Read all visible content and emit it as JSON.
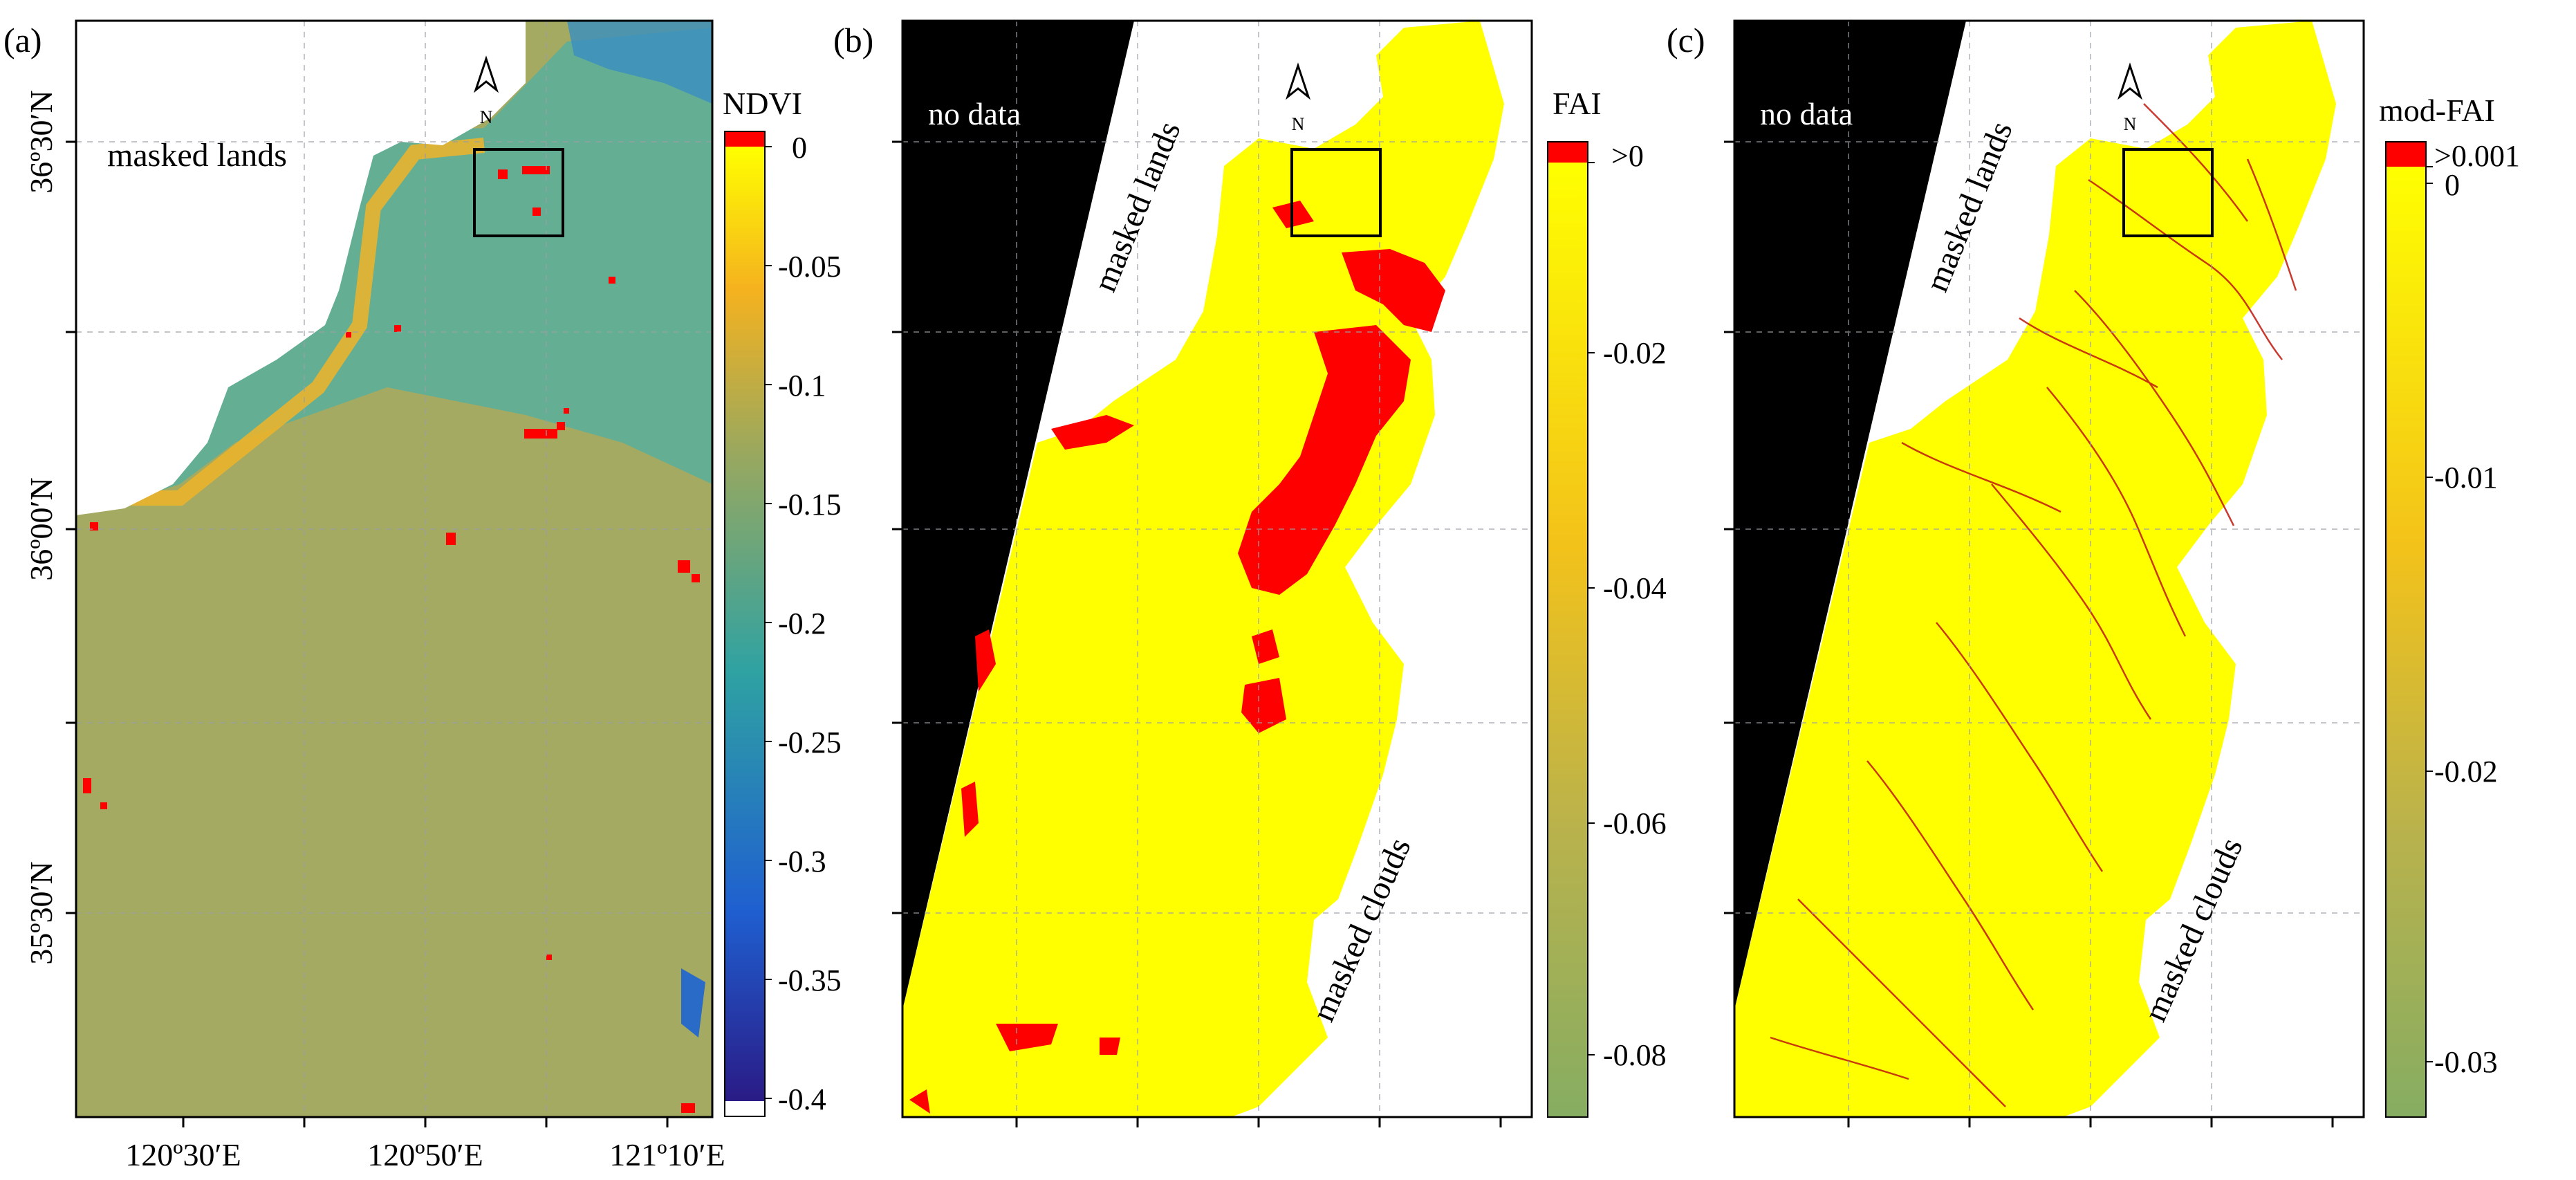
{
  "panels": [
    {
      "id": "a",
      "label": "(a)",
      "map_text": [
        "masked lands"
      ],
      "colorbar": {
        "title": "NDVI",
        "ticks": [
          "0",
          "-0.05",
          "-0.1",
          "-0.15",
          "-0.2",
          "-0.25",
          "-0.3",
          "-0.35",
          "-0.4"
        ],
        "top_color": "#ff0000",
        "bottom_color": "#ffffff",
        "gradient_colors": [
          "#ffff00",
          "#f5b21f",
          "#9aa85e",
          "#2fa2a2",
          "#1f5fd0",
          "#2a1b86"
        ]
      },
      "lat_labels": [
        "36º30′N",
        "36º00′N",
        "35º30′N"
      ],
      "lon_labels": [
        "120º30′E",
        "120º50′E",
        "121º10′E"
      ],
      "north_letter": "N"
    },
    {
      "id": "b",
      "label": "(b)",
      "map_text": [
        "no data",
        "masked lands",
        "masked clouds"
      ],
      "colorbar": {
        "title": "FAI",
        "ticks": [
          ">0",
          "-0.02",
          "-0.04",
          "-0.06",
          "-0.08"
        ],
        "top_color": "#ff0000",
        "gradient_colors": [
          "#ffff00",
          "#f3c21a",
          "#b9b24c",
          "#86ad62"
        ]
      },
      "north_letter": "N"
    },
    {
      "id": "c",
      "label": "(c)",
      "map_text": [
        "no data",
        "masked lands",
        "masked clouds"
      ],
      "colorbar": {
        "title": "mod-FAI",
        "ticks": [
          ">0.001",
          "0",
          "-0.01",
          "-0.02",
          "-0.03"
        ],
        "top_color": "#ff0000",
        "gradient_colors": [
          "#ffff00",
          "#f3c21a",
          "#b9b24c",
          "#86ad62"
        ]
      },
      "north_letter": "N"
    }
  ],
  "colors": {
    "sea_base": "#a4aa62",
    "sea_teal": "#4fb0a6",
    "algae_red": "#ff0000",
    "fai_yellow": "#ffff00",
    "nodata_black": "#000000"
  }
}
